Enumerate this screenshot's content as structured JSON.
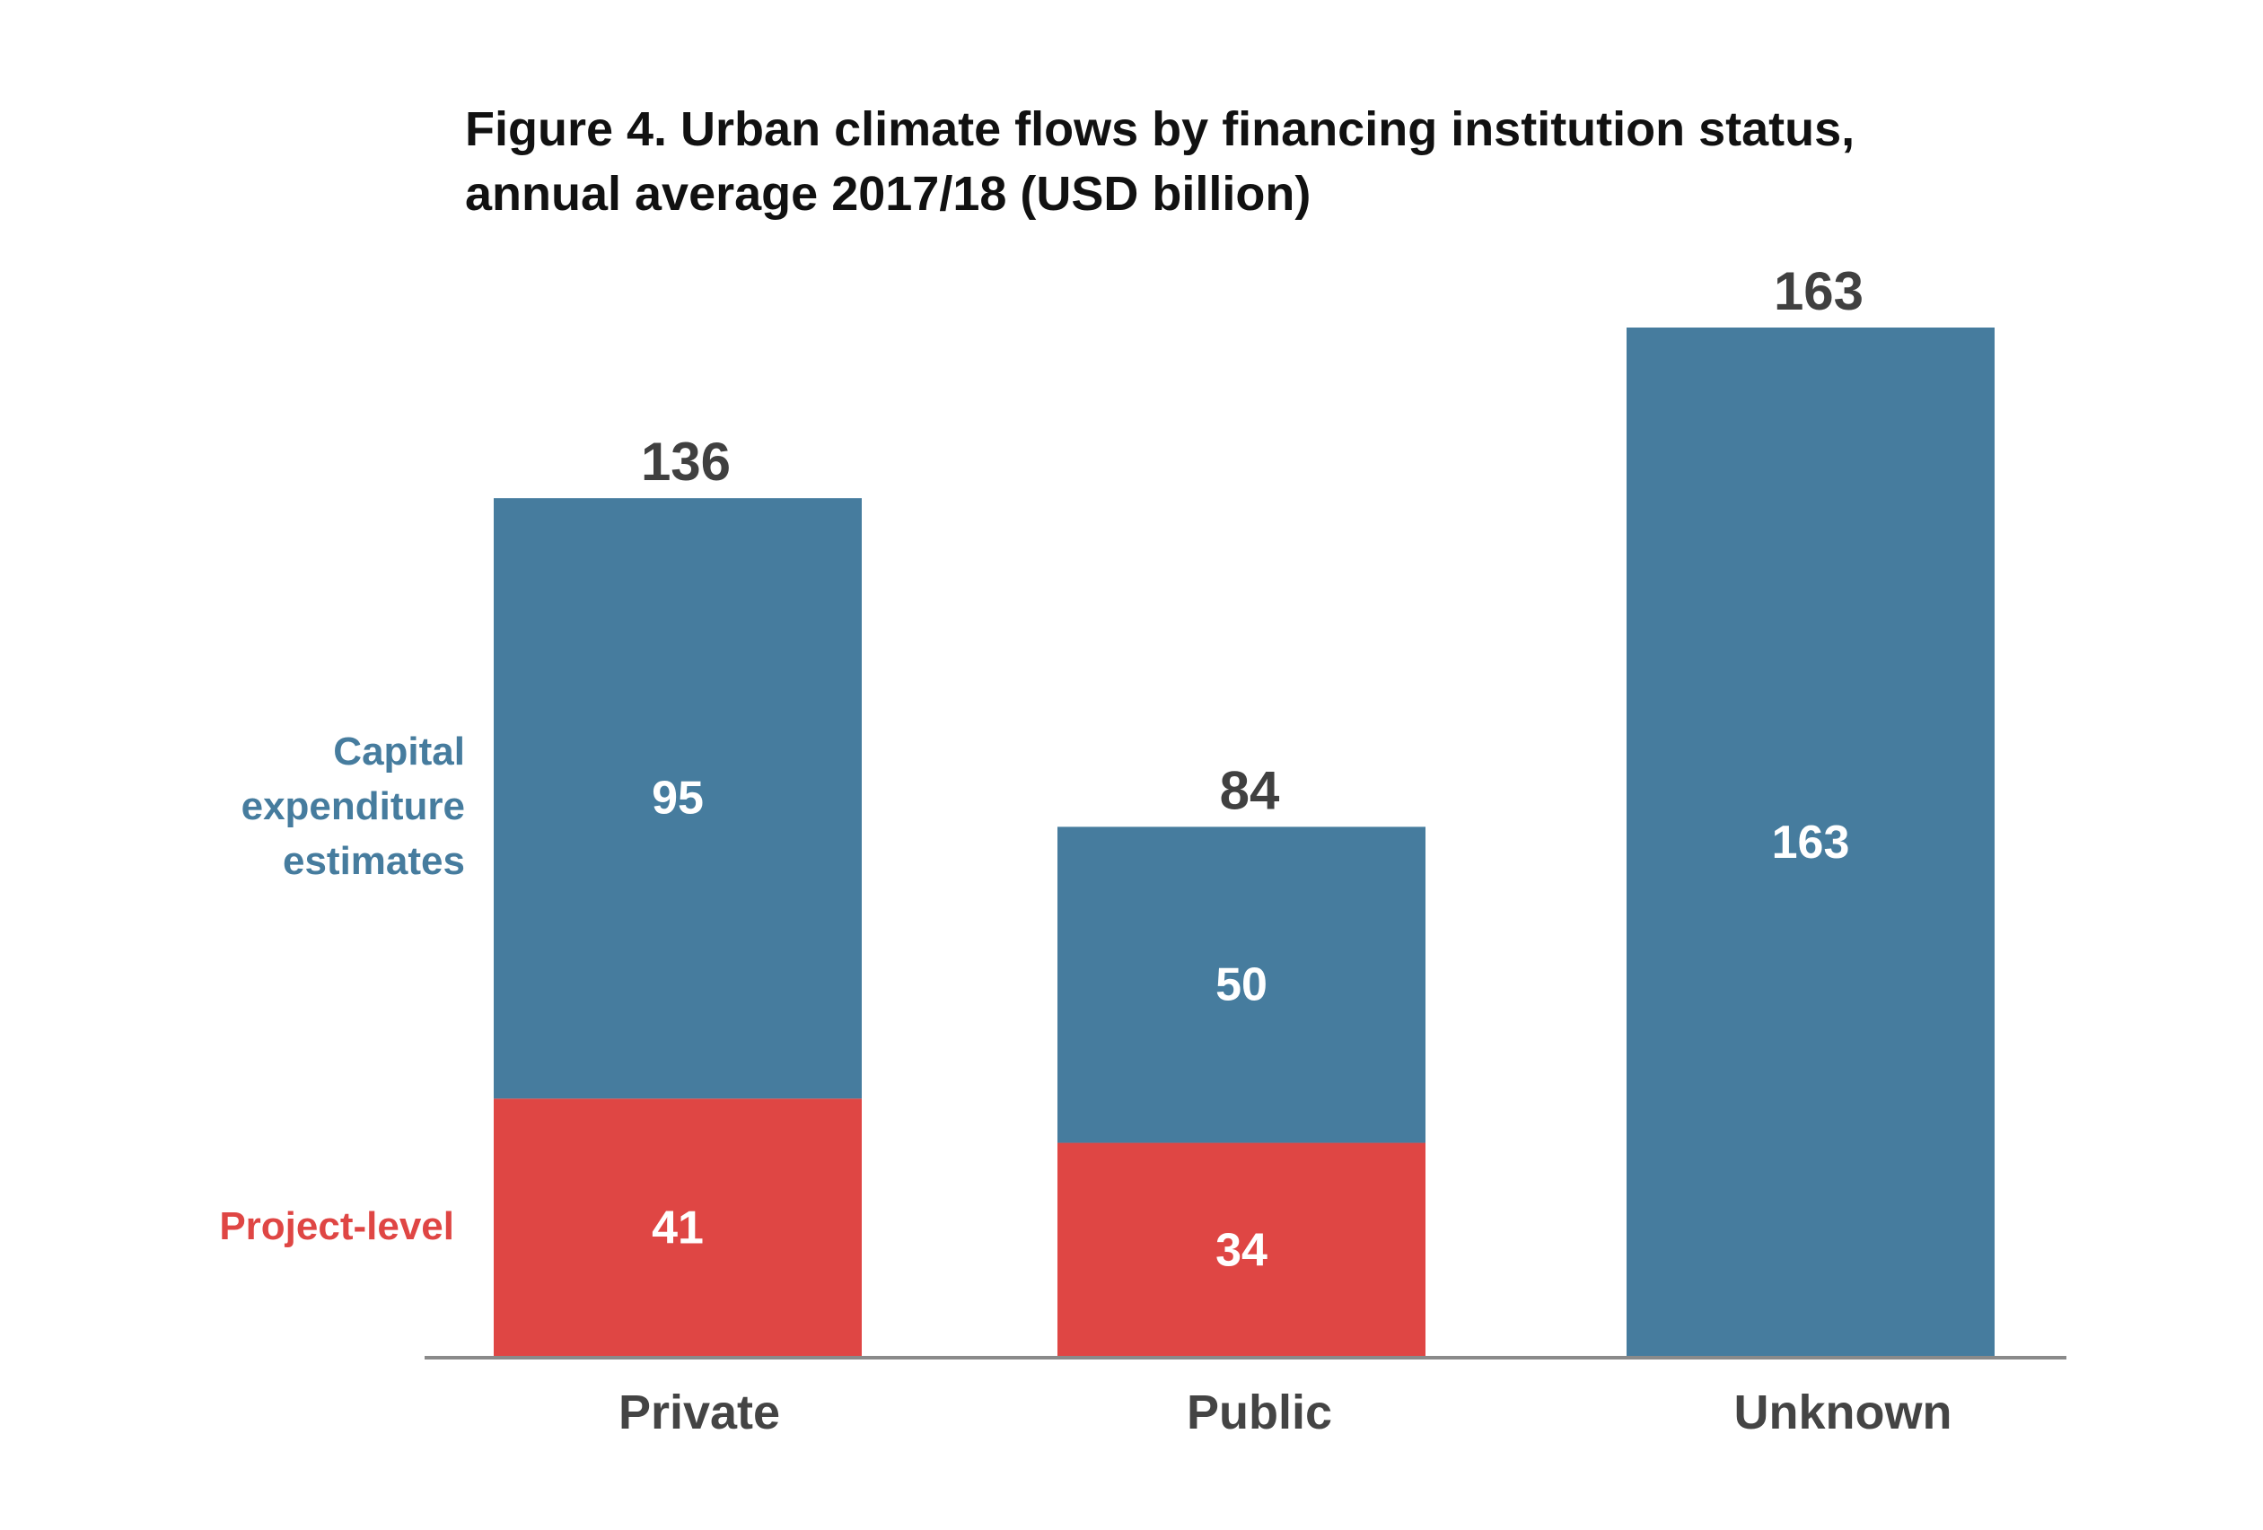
{
  "chart_data": {
    "type": "bar",
    "stacked": true,
    "title_line1": "Figure 4. Urban climate flows by financing institution status,",
    "title_line2": "annual average 2017/18 (USD billion)",
    "xlabel": "",
    "ylabel": "",
    "grid": false,
    "categories": [
      "Private",
      "Public",
      "Unknown"
    ],
    "series": [
      {
        "name": "Project-level",
        "values": [
          41,
          34,
          0
        ],
        "labels": [
          "41",
          "34",
          ""
        ],
        "color": "#df4644"
      },
      {
        "name": "Capital expenditure estimates",
        "values": [
          95,
          50,
          163
        ],
        "labels": [
          "95",
          "50",
          "163"
        ],
        "color": "#467c9e"
      }
    ],
    "totals": [
      136,
      84,
      163
    ],
    "total_labels": [
      "136",
      "84",
      "163"
    ],
    "legend": {
      "placement": "left",
      "capital_lines": [
        "Capital",
        "expenditure",
        "estimates"
      ],
      "project": "Project-level"
    },
    "ylim": [
      0,
      163
    ],
    "axis_color": "#8a8a8a"
  }
}
